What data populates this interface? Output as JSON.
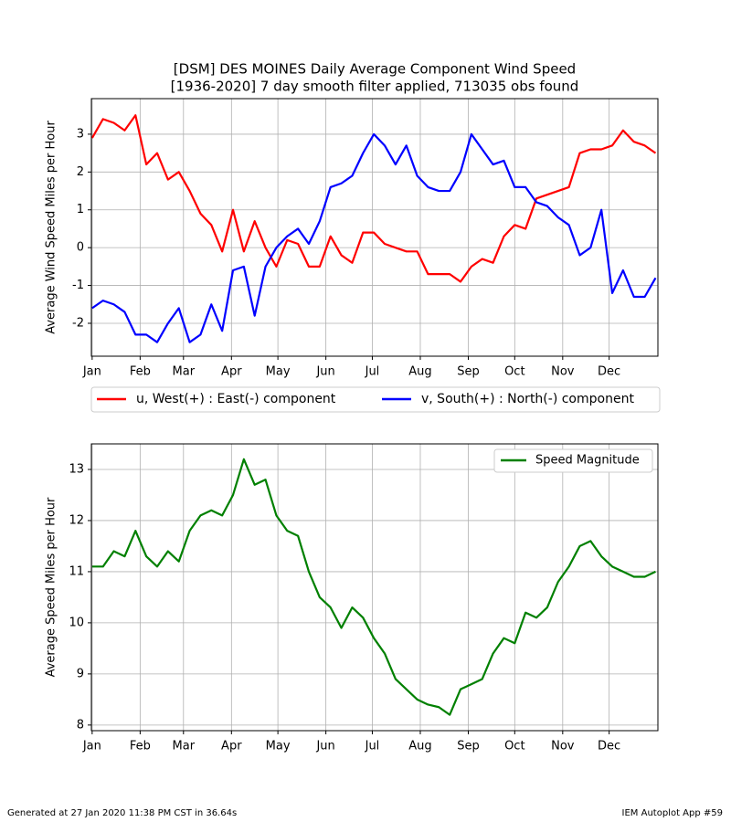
{
  "chart_data": [
    {
      "type": "line",
      "title": [
        "[DSM] DES MOINES Daily Average Component Wind Speed",
        "[1936-2020] 7 day smooth filter applied, 713035 obs found"
      ],
      "y_label": "Average Wind Speed Miles per Hour",
      "x": [
        1,
        8,
        15,
        22,
        29,
        36,
        43,
        50,
        57,
        64,
        71,
        78,
        85,
        92,
        99,
        106,
        113,
        120,
        127,
        134,
        141,
        148,
        155,
        162,
        169,
        176,
        183,
        190,
        197,
        204,
        211,
        218,
        225,
        232,
        239,
        246,
        253,
        260,
        267,
        274,
        281,
        288,
        295,
        302,
        309,
        316,
        323,
        330,
        337,
        344,
        351,
        358,
        365
      ],
      "series": [
        {
          "name": "u, West(+) : East(-) component",
          "color": "#ff0000",
          "values": [
            2.9,
            3.4,
            3.3,
            3.1,
            3.5,
            2.2,
            2.5,
            1.8,
            2.0,
            1.5,
            0.9,
            0.6,
            -0.1,
            1.0,
            -0.1,
            0.7,
            0.0,
            -0.5,
            0.2,
            0.1,
            -0.5,
            -0.5,
            0.3,
            -0.2,
            -0.4,
            0.4,
            0.4,
            0.1,
            0.0,
            -0.1,
            -0.1,
            -0.7,
            -0.7,
            -0.7,
            -0.9,
            -0.5,
            -0.3,
            -0.4,
            0.3,
            0.6,
            0.5,
            1.3,
            1.4,
            1.5,
            1.6,
            2.5,
            2.6,
            2.6,
            2.7,
            3.1,
            2.8,
            2.7,
            2.5
          ]
        },
        {
          "name": "v, South(+) : North(-) component",
          "color": "#0000ff",
          "values": [
            -1.6,
            -1.4,
            -1.5,
            -1.7,
            -2.3,
            -2.3,
            -2.5,
            -2.0,
            -1.6,
            -2.5,
            -2.3,
            -1.5,
            -2.2,
            -0.6,
            -0.5,
            -1.8,
            -0.5,
            0.0,
            0.3,
            0.5,
            0.1,
            0.7,
            1.6,
            1.7,
            1.9,
            2.5,
            3.0,
            2.7,
            2.2,
            2.7,
            1.9,
            1.6,
            1.5,
            1.5,
            2.0,
            3.0,
            2.6,
            2.2,
            2.3,
            1.6,
            1.6,
            1.2,
            1.1,
            0.8,
            0.6,
            -0.2,
            0.0,
            1.0,
            -1.2,
            -0.6,
            -1.3,
            -1.3,
            -0.8
          ]
        }
      ],
      "xlim": [
        0.5,
        366.5
      ],
      "xticks": [
        {
          "value": 1,
          "label": "Jan"
        },
        {
          "value": 32,
          "label": "Feb"
        },
        {
          "value": 60,
          "label": "Mar"
        },
        {
          "value": 91,
          "label": "Apr"
        },
        {
          "value": 121,
          "label": "May"
        },
        {
          "value": 152,
          "label": "Jun"
        },
        {
          "value": 182,
          "label": "Jul"
        },
        {
          "value": 213,
          "label": "Aug"
        },
        {
          "value": 244,
          "label": "Sep"
        },
        {
          "value": 274,
          "label": "Oct"
        },
        {
          "value": 305,
          "label": "Nov"
        },
        {
          "value": 335,
          "label": "Dec"
        }
      ],
      "ylim": [
        -2.87,
        3.94
      ],
      "yticks": [
        -2,
        -1,
        0,
        1,
        2,
        3
      ],
      "grid": true,
      "legend": "below"
    },
    {
      "type": "line",
      "y_label": "Average Speed Miles per Hour",
      "x": [
        1,
        8,
        15,
        22,
        29,
        36,
        43,
        50,
        57,
        64,
        71,
        78,
        85,
        92,
        99,
        106,
        113,
        120,
        127,
        134,
        141,
        148,
        155,
        162,
        169,
        176,
        183,
        190,
        197,
        204,
        211,
        218,
        225,
        232,
        239,
        246,
        253,
        260,
        267,
        274,
        281,
        288,
        295,
        302,
        309,
        316,
        323,
        330,
        337,
        344,
        351,
        358,
        365
      ],
      "series": [
        {
          "name": "Speed Magnitude",
          "color": "#008000",
          "values": [
            11.1,
            11.1,
            11.4,
            11.3,
            11.8,
            11.3,
            11.1,
            11.4,
            11.2,
            11.8,
            12.1,
            12.2,
            12.1,
            12.5,
            13.2,
            12.7,
            12.8,
            12.1,
            11.8,
            11.7,
            11.0,
            10.5,
            10.3,
            9.9,
            10.3,
            10.1,
            9.7,
            9.4,
            8.9,
            8.7,
            8.5,
            8.4,
            8.35,
            8.2,
            8.7,
            8.8,
            8.9,
            9.4,
            9.7,
            9.6,
            10.2,
            10.1,
            10.3,
            10.8,
            11.1,
            11.5,
            11.6,
            11.3,
            11.1,
            11.0,
            10.9,
            10.9,
            11.0
          ]
        }
      ],
      "xlim": [
        0.5,
        366.5
      ],
      "xticks": [
        {
          "value": 1,
          "label": "Jan"
        },
        {
          "value": 32,
          "label": "Feb"
        },
        {
          "value": 60,
          "label": "Mar"
        },
        {
          "value": 91,
          "label": "Apr"
        },
        {
          "value": 121,
          "label": "May"
        },
        {
          "value": 152,
          "label": "Jun"
        },
        {
          "value": 182,
          "label": "Jul"
        },
        {
          "value": 213,
          "label": "Aug"
        },
        {
          "value": 244,
          "label": "Sep"
        },
        {
          "value": 274,
          "label": "Oct"
        },
        {
          "value": 305,
          "label": "Nov"
        },
        {
          "value": 335,
          "label": "Dec"
        }
      ],
      "ylim": [
        7.89,
        13.5
      ],
      "yticks": [
        8,
        9,
        10,
        11,
        12,
        13
      ],
      "grid": true,
      "legend": "upper right"
    }
  ],
  "footer": {
    "left": "Generated at 27 Jan 2020 11:38 PM CST in 36.64s",
    "right": "IEM Autoplot App #59"
  }
}
